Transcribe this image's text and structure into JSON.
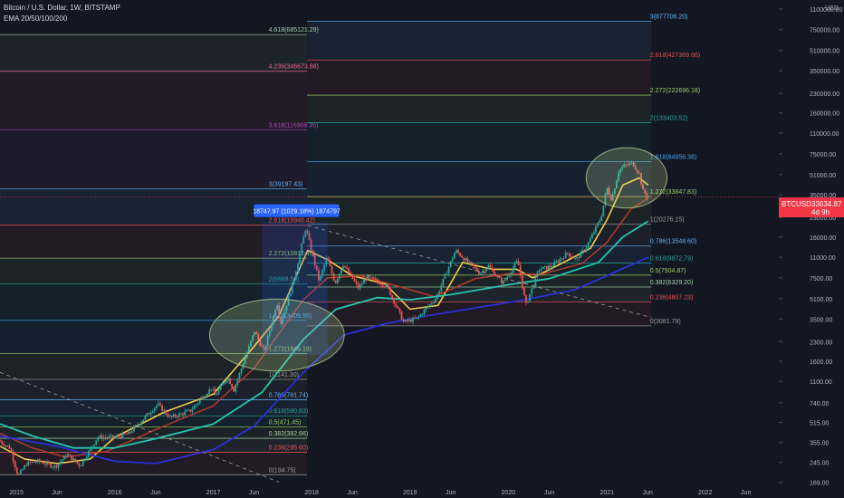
{
  "header": {
    "title": "Bitcoin / U.S. Dollar, 1W, BITSTAMP",
    "indicator": "EMA 20/50/100/200"
  },
  "price_tag": {
    "symbol": "BTCUSD",
    "price": "33634.87",
    "countdown": "4d 9h",
    "color": "#f23645"
  },
  "measure_label": "18747.97 (1029.18%) 1874797",
  "colors": {
    "background": "#131722",
    "text": "#b2b5be",
    "ema20": "#f2c94c",
    "ema50": "#c0392b",
    "ema100": "#26c6b0",
    "ema200": "#2b2fd6",
    "candle_up": "#26a69a",
    "candle_down": "#ef5350",
    "ellipse": "#c8e6a0"
  },
  "chart_data": {
    "type": "candlestick",
    "title": "Bitcoin / U.S. Dollar, 1W, BITSTAMP",
    "y_scale": "log",
    "ylabel": "USD",
    "ylim": [
      160,
      1300000
    ],
    "x_range": [
      "2014-11-01",
      "2022-10-01"
    ],
    "x_ticks": [
      {
        "x": "2015-01-01",
        "label": "2015"
      },
      {
        "x": "2015-06-01",
        "label": "Jun"
      },
      {
        "x": "2016-01-01",
        "label": "2016"
      },
      {
        "x": "2016-06-01",
        "label": "Jun"
      },
      {
        "x": "2017-01-01",
        "label": "2017"
      },
      {
        "x": "2017-06-01",
        "label": "Jun"
      },
      {
        "x": "2018-01-01",
        "label": "2018"
      },
      {
        "x": "2018-06-01",
        "label": "Jun"
      },
      {
        "x": "2019-01-01",
        "label": "2019"
      },
      {
        "x": "2019-06-01",
        "label": "Jun"
      },
      {
        "x": "2020-01-01",
        "label": "2020"
      },
      {
        "x": "2020-06-01",
        "label": "Jun"
      },
      {
        "x": "2021-01-01",
        "label": "2021"
      },
      {
        "x": "2021-06-01",
        "label": "Jun"
      },
      {
        "x": "2022-01-01",
        "label": "2022"
      },
      {
        "x": "2022-06-01",
        "label": "Jun"
      }
    ],
    "y_ticks": [
      {
        "v": 1100000,
        "label": "1100000.00"
      },
      {
        "v": 750000,
        "label": "750000.00"
      },
      {
        "v": 510000,
        "label": "510000.00"
      },
      {
        "v": 350000,
        "label": "350000.00"
      },
      {
        "v": 230000,
        "label": "230000.00"
      },
      {
        "v": 160000,
        "label": "160000.00"
      },
      {
        "v": 110000,
        "label": "110000.00"
      },
      {
        "v": 75000,
        "label": "75000.00"
      },
      {
        "v": 51000,
        "label": "51000.00"
      },
      {
        "v": 35000,
        "label": "35000.00"
      },
      {
        "v": 23000,
        "label": "23000.00"
      },
      {
        "v": 16000,
        "label": "16000.00"
      },
      {
        "v": 11000,
        "label": "11000.00"
      },
      {
        "v": 7500,
        "label": "7500.00"
      },
      {
        "v": 5100,
        "label": "5100.00"
      },
      {
        "v": 3500,
        "label": "3500.00"
      },
      {
        "v": 2300,
        "label": "2300.00"
      },
      {
        "v": 1600,
        "label": "1600.00"
      },
      {
        "v": 1100,
        "label": "1100.00"
      },
      {
        "v": 740,
        "label": "740.00"
      },
      {
        "v": 515,
        "label": "515.00"
      },
      {
        "v": 355,
        "label": "355.00"
      },
      {
        "v": 245,
        "label": "245.00"
      },
      {
        "v": 169,
        "label": "169.00"
      }
    ],
    "price_path": [
      [
        "2014-11-01",
        370
      ],
      [
        "2014-12-15",
        320
      ],
      [
        "2015-01-14",
        190
      ],
      [
        "2015-02-15",
        240
      ],
      [
        "2015-04-01",
        250
      ],
      [
        "2015-06-01",
        225
      ],
      [
        "2015-07-15",
        285
      ],
      [
        "2015-09-01",
        230
      ],
      [
        "2015-11-05",
        390
      ],
      [
        "2016-01-15",
        390
      ],
      [
        "2016-03-01",
        420
      ],
      [
        "2016-06-15",
        720
      ],
      [
        "2016-08-01",
        560
      ],
      [
        "2016-10-15",
        640
      ],
      [
        "2017-01-01",
        980
      ],
      [
        "2017-01-15",
        840
      ],
      [
        "2017-03-01",
        1200
      ],
      [
        "2017-03-25",
        940
      ],
      [
        "2017-06-10",
        2800
      ],
      [
        "2017-07-15",
        1900
      ],
      [
        "2017-09-01",
        4800
      ],
      [
        "2017-09-15",
        3200
      ],
      [
        "2017-11-01",
        7000
      ],
      [
        "2017-12-17",
        19000
      ],
      [
        "2018-02-05",
        7000
      ],
      [
        "2018-03-05",
        11000
      ],
      [
        "2018-04-05",
        6800
      ],
      [
        "2018-05-05",
        9700
      ],
      [
        "2018-07-01",
        6200
      ],
      [
        "2018-08-01",
        7700
      ],
      [
        "2018-10-15",
        6400
      ],
      [
        "2018-12-15",
        3300
      ],
      [
        "2019-02-01",
        3500
      ],
      [
        "2019-04-15",
        5200
      ],
      [
        "2019-06-26",
        12500
      ],
      [
        "2019-08-01",
        10500
      ],
      [
        "2019-09-24",
        8200
      ],
      [
        "2019-10-26",
        9400
      ],
      [
        "2019-12-18",
        6800
      ],
      [
        "2020-02-12",
        10300
      ],
      [
        "2020-03-13",
        4500
      ],
      [
        "2020-05-01",
        8800
      ],
      [
        "2020-06-15",
        9300
      ],
      [
        "2020-08-15",
        11900
      ],
      [
        "2020-09-15",
        10500
      ],
      [
        "2020-10-25",
        13500
      ],
      [
        "2020-12-17",
        23000
      ],
      [
        "2021-01-08",
        40000
      ],
      [
        "2021-01-25",
        32000
      ],
      [
        "2021-02-21",
        55000
      ],
      [
        "2021-03-13",
        60000
      ],
      [
        "2021-04-14",
        63000
      ],
      [
        "2021-05-12",
        50000
      ],
      [
        "2021-05-19",
        37000
      ],
      [
        "2021-05-26",
        38000
      ],
      [
        "2021-06-03",
        33600
      ]
    ],
    "ema_series": [
      {
        "name": "EMA 20",
        "color": "#f2c94c",
        "points": [
          [
            "2014-11-01",
            330
          ],
          [
            "2015-02-01",
            260
          ],
          [
            "2015-06-01",
            240
          ],
          [
            "2015-10-01",
            260
          ],
          [
            "2016-01-01",
            390
          ],
          [
            "2016-07-01",
            620
          ],
          [
            "2017-01-01",
            870
          ],
          [
            "2017-06-01",
            2100
          ],
          [
            "2017-09-01",
            3700
          ],
          [
            "2017-12-17",
            12500
          ],
          [
            "2018-03-01",
            10500
          ],
          [
            "2018-06-01",
            7800
          ],
          [
            "2018-10-01",
            6700
          ],
          [
            "2019-01-01",
            4200
          ],
          [
            "2019-04-15",
            4500
          ],
          [
            "2019-07-15",
            10000
          ],
          [
            "2019-11-01",
            8800
          ],
          [
            "2020-02-01",
            8800
          ],
          [
            "2020-04-01",
            7500
          ],
          [
            "2020-08-01",
            10200
          ],
          [
            "2020-11-01",
            13000
          ],
          [
            "2021-01-01",
            22000
          ],
          [
            "2021-03-01",
            42000
          ],
          [
            "2021-05-01",
            48000
          ],
          [
            "2021-06-03",
            42000
          ]
        ]
      },
      {
        "name": "EMA 50",
        "color": "#c0392b",
        "points": [
          [
            "2014-11-01",
            420
          ],
          [
            "2015-03-01",
            320
          ],
          [
            "2015-07-01",
            270
          ],
          [
            "2015-12-01",
            300
          ],
          [
            "2016-06-01",
            450
          ],
          [
            "2017-01-01",
            700
          ],
          [
            "2017-06-01",
            1400
          ],
          [
            "2017-12-01",
            5000
          ],
          [
            "2018-03-01",
            7500
          ],
          [
            "2018-07-01",
            7800
          ],
          [
            "2018-12-01",
            6300
          ],
          [
            "2019-04-01",
            5300
          ],
          [
            "2019-09-01",
            7400
          ],
          [
            "2020-01-01",
            8100
          ],
          [
            "2020-05-01",
            8000
          ],
          [
            "2020-10-01",
            9800
          ],
          [
            "2021-01-01",
            14500
          ],
          [
            "2021-04-01",
            27000
          ],
          [
            "2021-06-03",
            33000
          ]
        ]
      },
      {
        "name": "EMA 100",
        "color": "#26c6b0",
        "points": [
          [
            "2014-11-01",
            500
          ],
          [
            "2015-03-01",
            400
          ],
          [
            "2015-08-01",
            320
          ],
          [
            "2016-01-01",
            320
          ],
          [
            "2016-06-01",
            380
          ],
          [
            "2017-01-01",
            500
          ],
          [
            "2017-07-01",
            900
          ],
          [
            "2017-12-01",
            2400
          ],
          [
            "2018-04-01",
            4200
          ],
          [
            "2018-09-01",
            5200
          ],
          [
            "2019-01-01",
            5000
          ],
          [
            "2019-06-01",
            5500
          ],
          [
            "2020-01-01",
            6600
          ],
          [
            "2020-06-01",
            7400
          ],
          [
            "2020-12-01",
            10000
          ],
          [
            "2021-03-01",
            16000
          ],
          [
            "2021-06-03",
            21500
          ]
        ]
      },
      {
        "name": "EMA 200",
        "color": "#2b2fd6",
        "points": [
          [
            "2014-11-01",
            400
          ],
          [
            "2015-06-01",
            330
          ],
          [
            "2016-01-01",
            250
          ],
          [
            "2016-06-01",
            240
          ],
          [
            "2017-01-01",
            310
          ],
          [
            "2017-06-01",
            480
          ],
          [
            "2017-12-01",
            1300
          ],
          [
            "2018-05-01",
            2600
          ],
          [
            "2018-10-01",
            3200
          ],
          [
            "2019-03-01",
            3700
          ],
          [
            "2019-09-01",
            4300
          ],
          [
            "2020-03-01",
            5000
          ],
          [
            "2020-09-01",
            6000
          ],
          [
            "2021-01-01",
            7800
          ],
          [
            "2021-06-03",
            11000
          ]
        ]
      }
    ],
    "fib_levels_left": [
      {
        "ratio": "4.618",
        "label": "4.618(685121.29)",
        "value": 685121.29,
        "color": "#a5d6a7"
      },
      {
        "ratio": "4.236",
        "label": "4.236(346673.88)",
        "value": 346673.88,
        "color": "#f06292"
      },
      {
        "ratio": "3.618",
        "label": "3.618(116908.35)",
        "value": 116908.35,
        "color": "#ab47bc"
      },
      {
        "ratio": "3",
        "label": "3(39197.43)",
        "value": 39197.43,
        "color": "#64b5f6"
      },
      {
        "ratio": "2.618",
        "label": "2.618(19946.42)",
        "value": 19946.42,
        "color": "#ef5350"
      },
      {
        "ratio": "2.272",
        "label": "2.272(10812.45)",
        "value": 10812.45,
        "color": "#9ccc65"
      },
      {
        "ratio": "2",
        "label": "2(6688.52)",
        "value": 6688.52,
        "color": "#26a69a"
      },
      {
        "ratio": "1.618",
        "label": "1.618(3409.55)",
        "value": 3409.55,
        "color": "#42a5f5"
      },
      {
        "ratio": "1.272",
        "label": "1.272(1846.19)",
        "value": 1846.19,
        "color": "#9ccc65"
      },
      {
        "ratio": "1",
        "label": "1(1141.30)",
        "value": 1141.3,
        "color": "#9e9e9e"
      },
      {
        "ratio": "0.786",
        "label": "0.786(781.74)",
        "value": 781.74,
        "color": "#64b5f6"
      },
      {
        "ratio": "0.618",
        "label": "0.618(580.83)",
        "value": 580.83,
        "color": "#26a69a"
      },
      {
        "ratio": "0.5",
        "label": "0.5(471.45)",
        "value": 471.45,
        "color": "#9ccc65"
      },
      {
        "ratio": "0.382",
        "label": "0.382(382.66)",
        "value": 382.66,
        "color": "#a5d6a7"
      },
      {
        "ratio": "0.236",
        "label": "0.236(295.60)",
        "value": 295.6,
        "color": "#ef5350"
      },
      {
        "ratio": "0",
        "label": "0(194.75)",
        "value": 194.75,
        "color": "#9e9e9e"
      }
    ],
    "fib_levels_right": [
      {
        "ratio": "3",
        "label": "3(877706.20)",
        "value": 877706.2,
        "color": "#64b5f6"
      },
      {
        "ratio": "2.618",
        "label": "2.618(427369.66)",
        "value": 427369.66,
        "color": "#ef5350"
      },
      {
        "ratio": "2.272",
        "label": "2.272(222696.18)",
        "value": 222696.18,
        "color": "#9ccc65"
      },
      {
        "ratio": "2",
        "label": "2(133403.52)",
        "value": 133403.52,
        "color": "#26a69a"
      },
      {
        "ratio": "1.618",
        "label": "1.618(64956.38)",
        "value": 64956.38,
        "color": "#42a5f5"
      },
      {
        "ratio": "1.272",
        "label": "1.272(33847.83)",
        "value": 33847.83,
        "color": "#9ccc65"
      },
      {
        "ratio": "1",
        "label": "1(20276.15)",
        "value": 20276.15,
        "color": "#9e9e9e"
      },
      {
        "ratio": "0.786",
        "label": "0.786(13548.60)",
        "value": 13548.6,
        "color": "#64b5f6"
      },
      {
        "ratio": "0.618",
        "label": "0.618(9872.79)",
        "value": 9872.79,
        "color": "#26a69a"
      },
      {
        "ratio": "0.5",
        "label": "0.5(7904.87)",
        "value": 7904.87,
        "color": "#9ccc65"
      },
      {
        "ratio": "0.382",
        "label": "0.382(6329.20)",
        "value": 6329.2,
        "color": "#a5d6a7"
      },
      {
        "ratio": "0.236",
        "label": "0.236(4807.23)",
        "value": 4807.23,
        "color": "#ef5350"
      },
      {
        "ratio": "0",
        "label": "0(3081.79)",
        "value": 3081.79,
        "color": "#9e9e9e"
      }
    ],
    "left_fib_span": [
      "2014-11-01",
      "2017-12-15"
    ],
    "right_fib_span": [
      "2017-12-15",
      "2021-06-15"
    ],
    "measure_box": {
      "x0": "2017-07-01",
      "x1": "2018-03-01",
      "y0": 1800,
      "y1": 21000
    },
    "trendline": {
      "from": [
        "2017-12-17",
        19800
      ],
      "to": [
        "2021-06-15",
        3600
      ]
    },
    "lower_trendline": {
      "from": [
        "2014-11-01",
        1300
      ],
      "to": [
        "2017-09-01",
        170
      ]
    },
    "ellipses": [
      {
        "cx": "2017-08-25",
        "cy": 2600,
        "rx_days": 250,
        "ry_factor": 1.95
      },
      {
        "cx": "2021-03-15",
        "cy": 48000,
        "rx_days": 150,
        "ry_factor": 1.75
      }
    ]
  }
}
